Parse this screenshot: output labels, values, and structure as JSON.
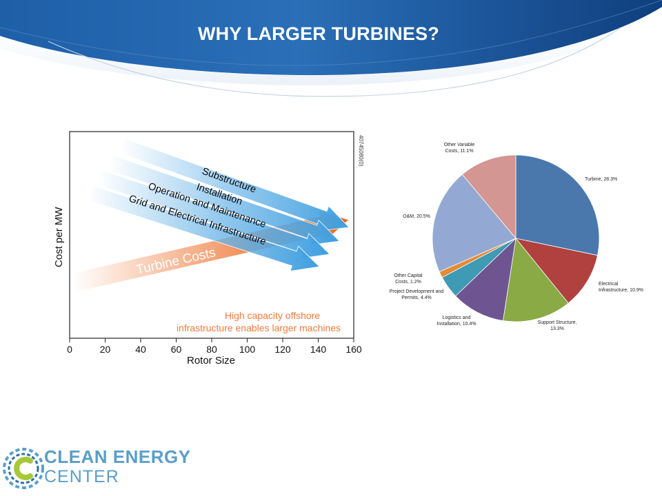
{
  "slide": {
    "title": "WHY LARGER TURBINES?"
  },
  "logo": {
    "line1": "CLEAN ENERGY",
    "line2": "CENTER"
  },
  "chart_data": [
    {
      "type": "other",
      "xlabel": "Rotor Size",
      "ylabel": "Cost per MW",
      "x_ticks": [
        "0",
        "20",
        "40",
        "60",
        "80",
        "100",
        "120",
        "140",
        "160"
      ],
      "xlim": [
        0,
        160
      ],
      "code": "40745080(0)",
      "arrows": [
        {
          "label": "Substructure",
          "direction": "decreasing",
          "color": "#6ab4e8"
        },
        {
          "label": "Installation",
          "direction": "decreasing",
          "color": "#6ab4e8"
        },
        {
          "label": "Operation and Maintenance",
          "direction": "decreasing",
          "color": "#6ab4e8"
        },
        {
          "label": "Grid and Electrical Infrastructure",
          "direction": "decreasing",
          "color": "#6ab4e8"
        },
        {
          "label": "Turbine Costs",
          "direction": "increasing",
          "color": "#f07a3a"
        }
      ],
      "annotation": [
        "High capacity offshore",
        "infrastructure enables larger machines"
      ],
      "annotation_color": "#f07a3a"
    },
    {
      "type": "pie",
      "slices": [
        {
          "label": "Turbine, 28.3%",
          "value": 28.3,
          "color": "#4a78ad"
        },
        {
          "label": "Electrical Infrastructure, 10.9%",
          "value": 10.9,
          "color": "#b0413e"
        },
        {
          "label": "Support Structure, 13.3%",
          "value": 13.3,
          "color": "#8aaa45"
        },
        {
          "label": "Logistics and Installation, 10.4%",
          "value": 10.4,
          "color": "#6e5592"
        },
        {
          "label": "Project Development and Permits, 4.4%",
          "value": 4.4,
          "color": "#3f9ab3"
        },
        {
          "label": "Other Capital Costs, 1.2%",
          "value": 1.2,
          "color": "#e48b35"
        },
        {
          "label": "O&M, 20.5%",
          "value": 20.5,
          "color": "#93a9d3"
        },
        {
          "label": "Other Variable Costs, 11.1%",
          "value": 11.1,
          "color": "#d39693"
        }
      ]
    }
  ]
}
